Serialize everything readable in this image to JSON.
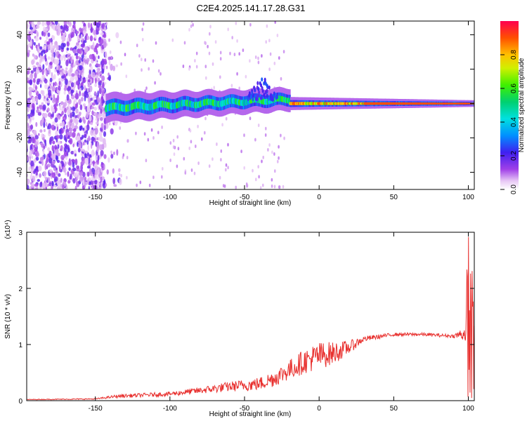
{
  "title": "C2E4.2025.141.17.28.G31",
  "chart_data": [
    {
      "type": "heatmap",
      "xlabel": "Height of straight line (km)",
      "ylabel": "Frequency (Hz)",
      "xlim": [
        -196,
        104
      ],
      "ylim": [
        -50,
        48
      ],
      "x_ticks": [
        -150,
        -100,
        -50,
        0,
        50,
        100
      ],
      "y_ticks": [
        -40,
        -20,
        0,
        20,
        40
      ],
      "colorbar": {
        "label": "Normalized spectral amplitude",
        "range": [
          0,
          1
        ],
        "ticks": [
          "0.0",
          "0.2",
          "0.4",
          "0.6",
          "0.8"
        ],
        "colormap": "rainbow"
      },
      "features": {
        "noise_region_x": [
          -196,
          -143
        ],
        "signal_band_center_hz": 0,
        "signal_band_halfwidth_hz": [
          3,
          1
        ]
      }
    },
    {
      "type": "line",
      "xlabel": "Height of straight line (km)",
      "ylabel": "SNR (10 * v/v)",
      "scale_label": "(x10⁴)",
      "xlim": [
        -196,
        104
      ],
      "ylim": [
        0,
        3
      ],
      "x_ticks": [
        -150,
        -100,
        -50,
        0,
        50,
        100
      ],
      "y_ticks": [
        0,
        1,
        2,
        3
      ],
      "color": "#e8302e",
      "envelope": {
        "x": [
          -196,
          -150,
          -135,
          -100,
          -80,
          -60,
          -40,
          -30,
          -20,
          -10,
          0,
          10,
          20,
          30,
          50,
          70,
          90,
          98,
          100,
          102,
          104
        ],
        "y": [
          0.02,
          0.03,
          0.08,
          0.12,
          0.18,
          0.25,
          0.3,
          0.4,
          0.55,
          0.7,
          0.8,
          0.85,
          0.95,
          1.1,
          1.18,
          1.18,
          1.15,
          1.2,
          1.6,
          1.3,
          0.8
        ],
        "amp": [
          0.005,
          0.01,
          0.03,
          0.04,
          0.06,
          0.09,
          0.12,
          0.15,
          0.18,
          0.22,
          0.25,
          0.2,
          0.12,
          0.05,
          0.03,
          0.03,
          0.03,
          0.15,
          1.2,
          1.0,
          0.8
        ]
      }
    }
  ]
}
